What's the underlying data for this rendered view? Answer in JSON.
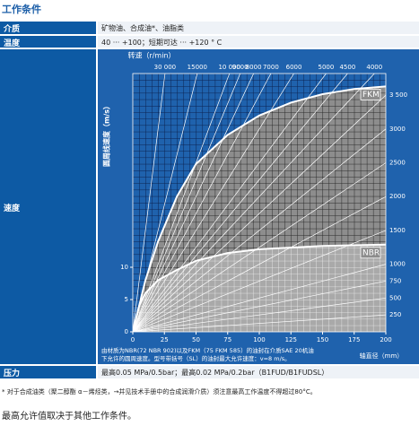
{
  "title": "工作条件",
  "rows": [
    {
      "label": "介质",
      "value": "矿物油、合成油*、油脂类"
    },
    {
      "label": "温度",
      "value": "40 ··· +100；短期可达 ··· +120 ° C"
    },
    {
      "label": "速度"
    },
    {
      "label": "压力",
      "value": "最高0.05 MPa/0.5bar；最高0.02 MPa/0.2bar（B1FUD/B1FUDSL）"
    }
  ],
  "chart_data": {
    "type": "line",
    "top_label": "转速（r/min）",
    "y_label": "圆周线速度（m/s）",
    "x_label": "轴直径（mm）",
    "caption": [
      "由材质为NBR(72 NBR 902)以及FKM（75 FKM 585）的油封在介质SAE 20机油",
      "下允许的圆周速度。型号带括号（SL）的油封最大允许速度：v=8 m/s。"
    ],
    "xlim": [
      0,
      200
    ],
    "ylim": [
      0,
      40
    ],
    "xticks": [
      0,
      25,
      50,
      75,
      100,
      125,
      150,
      175,
      200
    ],
    "yticks": [
      0,
      5,
      10
    ],
    "speed_lines": [
      {
        "value": 30000,
        "label": "30 000"
      },
      15000,
      {
        "value": 10000,
        "label": "10 000"
      },
      9000,
      8000,
      7000,
      6000,
      5000,
      4500,
      4000,
      {
        "value": 3500,
        "label": "3 500"
      },
      3000,
      2500,
      2000,
      1500,
      1000,
      750,
      500,
      250
    ],
    "series": [
      {
        "name": "FKM",
        "color": "#ffffff",
        "x": [
          0,
          5,
          10,
          20,
          35,
          50,
          75,
          100,
          125,
          150,
          175,
          200
        ],
        "values": [
          0,
          4,
          8,
          14,
          21,
          26,
          30.5,
          33.5,
          35.5,
          36.8,
          37.6,
          38
        ]
      },
      {
        "name": "NBR",
        "color": "#ffffff",
        "x": [
          0,
          5,
          10,
          20,
          35,
          50,
          75,
          100,
          150,
          200
        ],
        "values": [
          0,
          4,
          6,
          8,
          9.6,
          11,
          12.2,
          12.8,
          13.3,
          13.5
        ]
      }
    ]
  },
  "footnote": "* 对于合成油类（聚二醇酯 α－烯烃类，→并见技术手册中的合成润滑介质）须注意最高工作温度不得超过80°C。",
  "note": "最高允许值取决于其他工作条件。"
}
